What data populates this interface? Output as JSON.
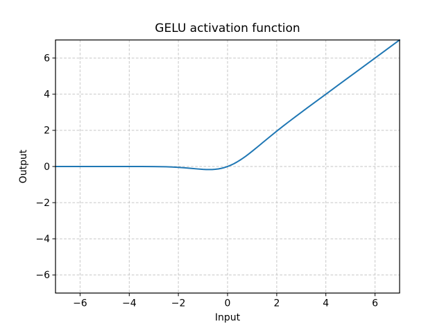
{
  "chart_data": {
    "type": "line",
    "title": "GELU activation function",
    "xlabel": "Input",
    "ylabel": "Output",
    "xlim": [
      -7,
      7
    ],
    "ylim": [
      -7,
      7
    ],
    "xticks": {
      "values": [
        -6,
        -4,
        -2,
        0,
        2,
        4,
        6
      ],
      "labels": [
        "−6",
        "−4",
        "−2",
        "0",
        "2",
        "4",
        "6"
      ]
    },
    "yticks": {
      "values": [
        -6,
        -4,
        -2,
        0,
        2,
        4,
        6
      ],
      "labels": [
        "−6",
        "−4",
        "−2",
        "0",
        "2",
        "4",
        "6"
      ]
    },
    "grid": true,
    "grid_style": "dashed",
    "legend": "none",
    "line_color": "#1f77b4",
    "grid_color": "#c6c6c6",
    "background_color": "#ffffff",
    "series": [
      {
        "name": "GELU",
        "x": [
          -7,
          -6,
          -5,
          -4,
          -3.5,
          -3,
          -2.75,
          -2.5,
          -2.25,
          -2,
          -1.75,
          -1.5,
          -1.25,
          -1,
          -0.875,
          -0.75,
          -0.625,
          -0.5,
          -0.375,
          -0.25,
          -0.125,
          0,
          0.125,
          0.25,
          0.375,
          0.5,
          0.625,
          0.75,
          0.875,
          1,
          1.25,
          1.5,
          1.75,
          2,
          2.25,
          2.5,
          2.75,
          3,
          3.25,
          3.5,
          4,
          4.5,
          5,
          6,
          7
        ],
        "y": [
          0,
          0,
          -1.4e-06,
          -0.000127,
          -0.000814,
          -0.00405,
          -0.00819,
          -0.01553,
          -0.0275,
          -0.0455,
          -0.0701,
          -0.10021,
          -0.13206,
          -0.15866,
          -0.16693,
          -0.16997,
          -0.16624,
          -0.15427,
          -0.13269,
          -0.10032,
          -0.05628,
          0,
          0.06872,
          0.14968,
          0.24231,
          0.34573,
          0.45876,
          0.58003,
          0.70807,
          0.84134,
          1.11794,
          1.39979,
          1.6799,
          1.9545,
          2.22251,
          2.48448,
          2.74181,
          2.99595,
          3.24812,
          3.49919,
          3.99987,
          4.49998,
          5,
          6,
          7
        ]
      }
    ]
  }
}
